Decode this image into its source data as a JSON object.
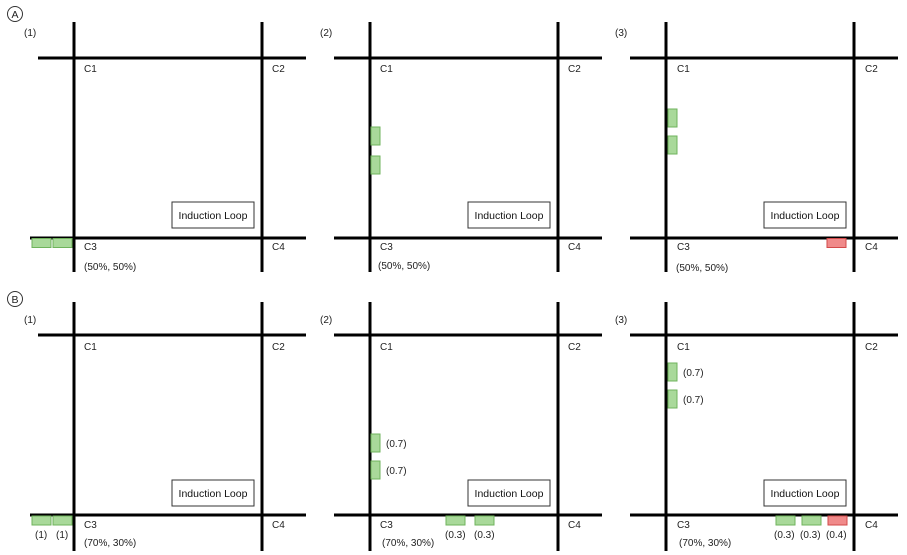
{
  "sections": [
    {
      "label": "A",
      "panels": [
        {
          "num": "(1)",
          "corners": {
            "c1": "C1",
            "c2": "C2",
            "c3": "C3",
            "c4": "C4"
          },
          "split": "(50%, 50%)",
          "loop": "Induction Loop",
          "car_labels": []
        },
        {
          "num": "(2)",
          "corners": {
            "c1": "C1",
            "c2": "C2",
            "c3": "C3",
            "c4": "C4"
          },
          "split": "(50%, 50%)",
          "loop": "Induction Loop",
          "car_labels": []
        },
        {
          "num": "(3)",
          "corners": {
            "c1": "C1",
            "c2": "C2",
            "c3": "C3",
            "c4": "C4"
          },
          "split": "(50%, 50%)",
          "loop": "Induction Loop",
          "car_labels": []
        }
      ]
    },
    {
      "label": "B",
      "panels": [
        {
          "num": "(1)",
          "corners": {
            "c1": "C1",
            "c2": "C2",
            "c3": "C3",
            "c4": "C4"
          },
          "split": "(70%, 30%)",
          "loop": "Induction Loop",
          "car_labels": [
            "(1)",
            "(1)"
          ]
        },
        {
          "num": "(2)",
          "corners": {
            "c1": "C1",
            "c2": "C2",
            "c3": "C3",
            "c4": "C4"
          },
          "split": "(70%, 30%)",
          "loop": "Induction Loop",
          "car_labels": [
            "(0.7)",
            "(0.7)",
            "(0.3)",
            "(0.3)"
          ]
        },
        {
          "num": "(3)",
          "corners": {
            "c1": "C1",
            "c2": "C2",
            "c3": "C3",
            "c4": "C4"
          },
          "split": "(70%, 30%)",
          "loop": "Induction Loop",
          "car_labels": [
            "(0.7)",
            "(0.7)",
            "(0.3)",
            "(0.3)",
            "(0.4)"
          ]
        }
      ]
    }
  ],
  "colors": {
    "road": "#000000",
    "car_green": "#a9d99a",
    "car_green_stroke": "#6fb35c",
    "car_red": "#f08a8a",
    "car_red_stroke": "#d24a4a"
  }
}
